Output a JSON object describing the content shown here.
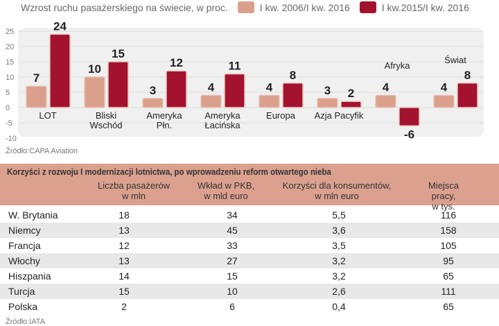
{
  "chart_data": {
    "type": "bar",
    "title": "Wzrost ruchu pasażerskiego na świecie, w proc.",
    "categories": [
      "LOT",
      "Bliski Wschód",
      "Ameryka Płn.",
      "Ameryka Łacińska",
      "Europa",
      "Azja Pacyfik",
      "Afryka",
      "Świat"
    ],
    "category_lines": [
      [
        "LOT"
      ],
      [
        "Bliski",
        "Wschód"
      ],
      [
        "Ameryka",
        "Płn."
      ],
      [
        "Ameryka",
        "Łacińska"
      ],
      [
        "Europa"
      ],
      [
        "Azja Pacyfik"
      ],
      [
        "Afryka"
      ],
      [
        "Świat"
      ]
    ],
    "series": [
      {
        "name": "I kw. 2006/I kw. 2016",
        "color": "#dba08b",
        "values": [
          7,
          10,
          3,
          4,
          4,
          3,
          4,
          4
        ]
      },
      {
        "name": "I kw.2015/I kw. 2016",
        "color": "#a3122f",
        "values": [
          24,
          15,
          12,
          11,
          8,
          2,
          -6,
          8
        ]
      }
    ],
    "yticks": [
      25,
      20,
      15,
      10,
      5,
      0,
      -5,
      -10
    ],
    "ylim": [
      -10,
      25
    ],
    "grid": true,
    "legend": "top",
    "source": "Źródło:CAPA Aviation"
  },
  "table": {
    "title": "Korzyści z rozwoju I modernizacji lotnictwa, po wprowadzeniu reform otwartego nieba",
    "headers": [
      [
        "Liczba pasażerów",
        "w mln"
      ],
      [
        "Wkład w PKB,",
        "w mld euro"
      ],
      [
        "Korzyści dla konsumentów,",
        "w mln euro"
      ],
      [
        "Miejsca pracy,",
        "w tys."
      ]
    ],
    "rows": [
      [
        "W. Brytania",
        "18",
        "34",
        "5,5",
        "116"
      ],
      [
        "Niemcy",
        "13",
        "45",
        "3,6",
        "158"
      ],
      [
        "Francja",
        "12",
        "33",
        "3,5",
        "105"
      ],
      [
        "Włochy",
        "13",
        "27",
        "3,2",
        "95"
      ],
      [
        "Hiszpania",
        "14",
        "15",
        "3,2",
        "65"
      ],
      [
        "Turcja",
        "15",
        "10",
        "2,6",
        "111"
      ],
      [
        "Polska",
        "2",
        "6",
        "0,4",
        "65"
      ]
    ],
    "source": "Źródło:IATA"
  }
}
